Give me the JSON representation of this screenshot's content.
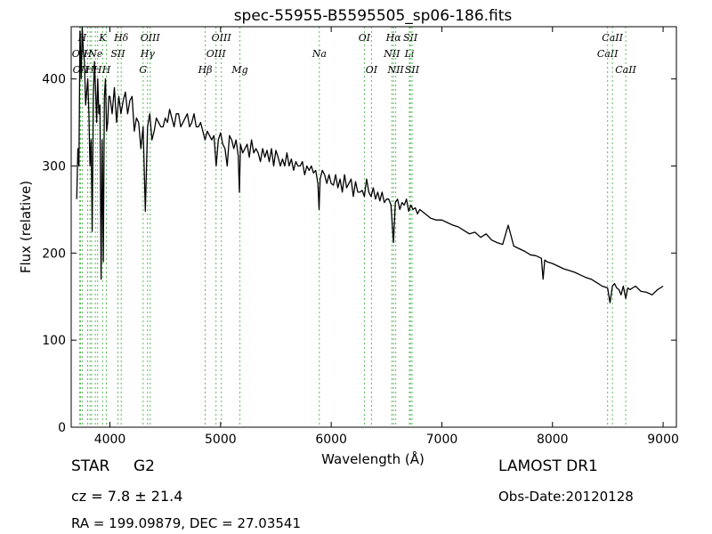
{
  "chart_data": {
    "type": "line",
    "title": "spec-55955-B5595505_sp06-186.fits",
    "xlabel": "Wavelength (Å)",
    "ylabel": "Flux (relative)",
    "xlim": [
      3650,
      9120
    ],
    "ylim": [
      0,
      460
    ],
    "xticks": [
      4000,
      5000,
      6000,
      7000,
      8000,
      9000
    ],
    "yticks": [
      0,
      100,
      200,
      300,
      400
    ],
    "grid": false,
    "line_color": "#000000",
    "marker_color": "#5cb85c",
    "series": [
      {
        "x": [
          3700,
          3710,
          3720,
          3730,
          3740,
          3750,
          3760,
          3770,
          3780,
          3790,
          3800,
          3810,
          3820,
          3830,
          3840,
          3850,
          3860,
          3870,
          3880,
          3890,
          3900,
          3910,
          3920,
          3930,
          3940,
          3950,
          3960,
          3970,
          3980,
          3990,
          4000,
          4020,
          4040,
          4060,
          4080,
          4100,
          4120,
          4140,
          4160,
          4180,
          4200,
          4220,
          4240,
          4260,
          4280,
          4300,
          4320,
          4340,
          4360,
          4380,
          4400,
          4420,
          4440,
          4460,
          4480,
          4500,
          4520,
          4540,
          4560,
          4580,
          4600,
          4620,
          4640,
          4660,
          4680,
          4700,
          4720,
          4740,
          4760,
          4780,
          4800,
          4820,
          4840,
          4860,
          4880,
          4900,
          4920,
          4940,
          4960,
          4980,
          5000,
          5020,
          5040,
          5060,
          5080,
          5100,
          5120,
          5140,
          5160,
          5170,
          5180,
          5200,
          5220,
          5240,
          5260,
          5280,
          5300,
          5320,
          5340,
          5360,
          5380,
          5400,
          5420,
          5440,
          5460,
          5480,
          5500,
          5520,
          5540,
          5560,
          5580,
          5600,
          5620,
          5640,
          5660,
          5680,
          5700,
          5720,
          5740,
          5760,
          5780,
          5800,
          5820,
          5840,
          5860,
          5880,
          5890,
          5900,
          5920,
          5940,
          5960,
          5980,
          6000,
          6020,
          6040,
          6060,
          6080,
          6100,
          6120,
          6140,
          6160,
          6180,
          6200,
          6220,
          6240,
          6260,
          6280,
          6300,
          6320,
          6340,
          6360,
          6380,
          6400,
          6420,
          6440,
          6460,
          6480,
          6500,
          6520,
          6540,
          6563,
          6580,
          6600,
          6620,
          6640,
          6660,
          6680,
          6700,
          6720,
          6740,
          6760,
          6780,
          6800,
          6850,
          6900,
          6950,
          7000,
          7050,
          7100,
          7150,
          7200,
          7250,
          7300,
          7350,
          7400,
          7450,
          7500,
          7550,
          7600,
          7650,
          7700,
          7750,
          7800,
          7850,
          7900,
          7915,
          7930,
          7950,
          8000,
          8050,
          8100,
          8150,
          8200,
          8250,
          8300,
          8350,
          8400,
          8450,
          8498,
          8520,
          8542,
          8560,
          8580,
          8600,
          8620,
          8640,
          8662,
          8680,
          8700,
          8750,
          8800,
          8850,
          8900,
          8950,
          9000
        ],
        "y": [
          262,
          320,
          300,
          455,
          400,
          460,
          430,
          420,
          370,
          385,
          400,
          360,
          300,
          330,
          225,
          380,
          420,
          390,
          350,
          400,
          360,
          370,
          170,
          330,
          190,
          380,
          400,
          340,
          350,
          380,
          380,
          360,
          390,
          350,
          380,
          360,
          375,
          385,
          360,
          375,
          380,
          340,
          355,
          350,
          320,
          345,
          248,
          345,
          360,
          330,
          340,
          355,
          350,
          345,
          345,
          355,
          350,
          365,
          355,
          345,
          360,
          360,
          345,
          350,
          355,
          360,
          345,
          350,
          360,
          345,
          345,
          350,
          340,
          330,
          340,
          335,
          330,
          335,
          300,
          330,
          338,
          325,
          320,
          300,
          335,
          330,
          320,
          330,
          312,
          270,
          325,
          315,
          320,
          325,
          310,
          330,
          315,
          320,
          315,
          305,
          320,
          310,
          318,
          305,
          320,
          300,
          318,
          310,
          300,
          308,
          300,
          315,
          300,
          308,
          295,
          305,
          300,
          300,
          305,
          290,
          300,
          295,
          300,
          292,
          295,
          280,
          250,
          285,
          295,
          290,
          280,
          290,
          280,
          278,
          290,
          275,
          285,
          270,
          290,
          275,
          280,
          285,
          265,
          282,
          270,
          270,
          272,
          265,
          285,
          270,
          265,
          275,
          262,
          270,
          260,
          270,
          258,
          262,
          262,
          255,
          212,
          258,
          262,
          250,
          258,
          255,
          262,
          248,
          255,
          250,
          252,
          245,
          250,
          245,
          240,
          238,
          238,
          235,
          232,
          230,
          226,
          222,
          224,
          218,
          222,
          215,
          212,
          210,
          232,
          208,
          205,
          202,
          198,
          197,
          194,
          170,
          192,
          190,
          188,
          185,
          182,
          180,
          178,
          175,
          172,
          170,
          166,
          162,
          160,
          143,
          162,
          165,
          160,
          158,
          152,
          162,
          148,
          160,
          158,
          162,
          156,
          155,
          152,
          158,
          162
        ]
      }
    ],
    "line_markers": [
      {
        "wavelength": 3727,
        "label": "OII",
        "row": 2
      },
      {
        "wavelength": 3734,
        "label": "OII",
        "row": 3
      },
      {
        "wavelength": 3750,
        "label": "H",
        "row": 1
      },
      {
        "wavelength": 3799,
        "label": "H",
        "row": 2
      },
      {
        "wavelength": 3820,
        "label": "H",
        "row": 3
      },
      {
        "wavelength": 3835,
        "label": "",
        "row": 0
      },
      {
        "wavelength": 3869,
        "label": "Ne",
        "row": 2
      },
      {
        "wavelength": 3889,
        "label": "H",
        "row": 3
      },
      {
        "wavelength": 3934,
        "label": "K",
        "row": 1
      },
      {
        "wavelength": 3968,
        "label": "H",
        "row": 3
      },
      {
        "wavelength": 4072,
        "label": "SII",
        "row": 2
      },
      {
        "wavelength": 4102,
        "label": "Hδ",
        "row": 1
      },
      {
        "wavelength": 4300,
        "label": "G",
        "row": 3
      },
      {
        "wavelength": 4340,
        "label": "Hγ",
        "row": 2
      },
      {
        "wavelength": 4364,
        "label": "OIII",
        "row": 1
      },
      {
        "wavelength": 4861,
        "label": "Hβ",
        "row": 3
      },
      {
        "wavelength": 4959,
        "label": "OIII",
        "row": 2
      },
      {
        "wavelength": 5007,
        "label": "OIII",
        "row": 1
      },
      {
        "wavelength": 5175,
        "label": "Mg",
        "row": 3
      },
      {
        "wavelength": 5893,
        "label": "Na",
        "row": 2
      },
      {
        "wavelength": 6300,
        "label": "OI",
        "row": 1
      },
      {
        "wavelength": 6364,
        "label": "OI",
        "row": 3
      },
      {
        "wavelength": 6548,
        "label": "NII",
        "row": 2
      },
      {
        "wavelength": 6563,
        "label": "Hα",
        "row": 1
      },
      {
        "wavelength": 6583,
        "label": "NII",
        "row": 3
      },
      {
        "wavelength": 6707,
        "label": "Li",
        "row": 2
      },
      {
        "wavelength": 6716,
        "label": "SII",
        "row": 1
      },
      {
        "wavelength": 6731,
        "label": "SII",
        "row": 3
      },
      {
        "wavelength": 8498,
        "label": "CaII",
        "row": 2
      },
      {
        "wavelength": 8542,
        "label": "CaII",
        "row": 1
      },
      {
        "wavelength": 8662,
        "label": "CaII",
        "row": 3
      }
    ]
  },
  "info": {
    "object_class": "STAR",
    "subclass": "G2",
    "redshift": "cz = 7.8 ± 21.4",
    "coordinates": "RA = 199.09879, DEC = 27.03541",
    "survey": "LAMOST DR1",
    "obs_date": "Obs-Date:20120128"
  }
}
